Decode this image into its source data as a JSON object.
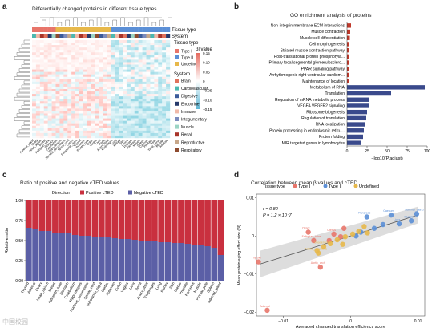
{
  "panels": {
    "a": {
      "label": "a",
      "title": "Differentially changed proteins in different tissue types"
    },
    "b": {
      "label": "b",
      "title": "GO enrichment analysis of proteins"
    },
    "c": {
      "label": "c",
      "title": "Ratio of positive and negative cTED values"
    },
    "d": {
      "label": "d",
      "title": "Correlation between mean β values and cTED"
    }
  },
  "heatmap": {
    "row_labels": [
      "Tissue type",
      "System"
    ],
    "legend_tissue_title": "Tissue type",
    "legend_tissue": [
      {
        "label": "Type I",
        "color": "#e8756a"
      },
      {
        "label": "Type II",
        "color": "#5b8fd6"
      },
      {
        "label": "Undefined",
        "color": "#e7b84a"
      }
    ],
    "legend_beta_title": "βl value",
    "legend_beta_ticks": [
      "0.15",
      "0.10",
      "0.05",
      "0",
      "−0.05",
      "−0.10",
      "−0.15"
    ],
    "legend_system_title": "System",
    "legend_system": [
      {
        "label": "Brain",
        "color": "#e0725c"
      },
      {
        "label": "Cardiovascular",
        "color": "#4bb8b0"
      },
      {
        "label": "Digestive",
        "color": "#3b5b9a"
      },
      {
        "label": "Endocrine",
        "color": "#263a6b"
      },
      {
        "label": "Immune",
        "color": "#f0b9a8"
      },
      {
        "label": "Integumentary",
        "color": "#7b8bbd"
      },
      {
        "label": "Muscle",
        "color": "#9bd4c4"
      },
      {
        "label": "Renal",
        "color": "#a8342a"
      },
      {
        "label": "Reproductive",
        "color": "#c7a789"
      },
      {
        "label": "Respiratory",
        "color": "#8e4b2f"
      }
    ],
    "columns": [
      "Adrenal_gland",
      "Ovary",
      "Heart_atrium",
      "Breast",
      "Fallopian_tube",
      "Stomach",
      "Cerebellum",
      "Hippocampus",
      "Nucleus_accumbens",
      "Spinal_cord",
      "Cortex",
      "Substantia_nigra",
      "Thyroid",
      "Putamen",
      "Frontal_pole",
      "Colon",
      "Vagina",
      "Liver",
      "Aorta",
      "Artery_tibial",
      "Esophagus",
      "Lung",
      "Kidney",
      "Skin",
      "Uterus",
      "Prostate",
      "Pancreas",
      "Muscle",
      "Spleen",
      "Caecum",
      "Pituitary",
      "Testis",
      "Tibial_nerve",
      "Bladder",
      "Adipose"
    ]
  },
  "chart_data": [
    {
      "panel": "b",
      "type": "bar",
      "orientation": "horizontal",
      "xlabel": "−log10(P.adjust)",
      "xlim": [
        0,
        100
      ],
      "xticks": [
        0,
        25,
        50,
        75,
        100
      ],
      "categories": [
        "Non-integrin membrane-ECM interactions",
        "Muscle contraction",
        "Muscle cell differentiation",
        "Cell morphogenesis",
        "Striated muscle contraction pathway",
        "Post-translational protein phosphoryla...",
        "Primary focal segmental glomerulosclero...",
        "PPAR signaling pathway",
        "Arrhythmogenic right ventricular cardiom...",
        "Maintenance of location",
        "Metabolism of RNA",
        "Translation",
        "Regulation of mRNA metabolic process",
        "VEGFA VEGFR2 signaling",
        "Ribosome biogenesis",
        "Regulation of translation",
        "RNA localization",
        "Protein processing in endoplasmic reticu...",
        "Protein folding",
        "MIR targeted genes in lymphocytes"
      ],
      "values": [
        5,
        4,
        3.5,
        3,
        3,
        3,
        2.5,
        2.5,
        2.5,
        2,
        97,
        55,
        27,
        27,
        25,
        24,
        23,
        21,
        20,
        18
      ],
      "colors": [
        "#c0392b",
        "#c0392b",
        "#c0392b",
        "#c0392b",
        "#c0392b",
        "#c0392b",
        "#c0392b",
        "#c0392b",
        "#c0392b",
        "#c0392b",
        "#3a4a8c",
        "#3a4a8c",
        "#3a4a8c",
        "#3a4a8c",
        "#3a4a8c",
        "#3a4a8c",
        "#3a4a8c",
        "#3a4a8c",
        "#3a4a8c",
        "#3a4a8c"
      ]
    },
    {
      "panel": "c",
      "type": "bar",
      "stacked": true,
      "ylabel": "Relative ratio",
      "ylim": [
        0,
        1
      ],
      "yticks": [
        "0.00",
        "0.25",
        "0.50",
        "0.75",
        "1.00"
      ],
      "legend_title": "Direction",
      "categories": [
        "Thyroid",
        "Adrenal",
        "Ovary",
        "Heart_atrium",
        "Breast",
        "Fallopian_tube",
        "Stomach",
        "Cerebellum",
        "Hippocampus",
        "Nucleus_accumbens",
        "Spinal_cord",
        "Substantia_nigra",
        "Cortex",
        "Putamen",
        "Colon",
        "Vagina",
        "Liver",
        "Aorta",
        "Artery_tibial",
        "Esophagus",
        "Lung",
        "Kidney",
        "Skin",
        "Uterus",
        "Prostate",
        "Pancreas",
        "Muscle",
        "Frontal_pole",
        "Spleen",
        "Adrenal_gland"
      ],
      "series": [
        {
          "name": "Positive cTED",
          "color": "#c9303f",
          "values": [
            0.34,
            0.36,
            0.38,
            0.38,
            0.4,
            0.4,
            0.41,
            0.43,
            0.44,
            0.44,
            0.45,
            0.46,
            0.46,
            0.47,
            0.48,
            0.48,
            0.49,
            0.5,
            0.5,
            0.51,
            0.52,
            0.52,
            0.53,
            0.53,
            0.54,
            0.55,
            0.56,
            0.57,
            0.59,
            0.68
          ]
        },
        {
          "name": "Negative cTED",
          "color": "#5b5fa6",
          "values": [
            0.66,
            0.64,
            0.62,
            0.62,
            0.6,
            0.6,
            0.59,
            0.57,
            0.56,
            0.56,
            0.55,
            0.54,
            0.54,
            0.53,
            0.52,
            0.52,
            0.51,
            0.5,
            0.5,
            0.49,
            0.48,
            0.48,
            0.47,
            0.47,
            0.46,
            0.45,
            0.44,
            0.43,
            0.41,
            0.32
          ]
        }
      ]
    },
    {
      "panel": "d",
      "type": "scatter",
      "xlabel": "Averaged changed translation efficiency score",
      "ylabel": "Mean protein aging effect size (βl)",
      "xlim": [
        -0.014,
        0.011
      ],
      "ylim": [
        -0.021,
        0.011
      ],
      "xticks": [
        "−0.01",
        "0",
        "0.01"
      ],
      "yticks": [
        "0.01",
        "0",
        "−0.01",
        "−0.02"
      ],
      "legend_title": "Tissue type",
      "annotation_r": "r = 0.80",
      "annotation_p": "P = 1.2 × 10⁻7",
      "series": [
        {
          "name": "Type I",
          "color": "#e8756a",
          "points": [
            {
              "x": -0.0124,
              "y": -0.0195,
              "label": "Adrenal"
            },
            {
              "x": -0.0137,
              "y": -0.0068,
              "label": "Thyroid"
            },
            {
              "x": -0.0045,
              "y": -0.0082,
              "label": "Aortic_arch"
            },
            {
              "x": -0.0055,
              "y": -0.0012,
              "label": "Fallopian_tube"
            },
            {
              "x": -0.0063,
              "y": 0.001,
              "label": "Ovary"
            },
            {
              "x": -0.0025,
              "y": 0.0005,
              "label": "Uterus"
            },
            {
              "x": -0.0032,
              "y": -0.0012,
              "label": ""
            },
            {
              "x": -0.0015,
              "y": -0.0002,
              "label": ""
            },
            {
              "x": -0.001,
              "y": 0.002,
              "label": ""
            }
          ]
        },
        {
          "name": "Type II",
          "color": "#5b8fd6",
          "points": [
            {
              "x": 0.0098,
              "y": 0.0058,
              "label": "Adrenal_gland"
            },
            {
              "x": 0.009,
              "y": 0.004,
              "label": "Muscle"
            },
            {
              "x": 0.006,
              "y": 0.0055,
              "label": "Caecum"
            },
            {
              "x": 0.0072,
              "y": 0.0032,
              "label": "Liver"
            },
            {
              "x": 0.0024,
              "y": 0.005,
              "label": "Pancreas"
            },
            {
              "x": 0.0048,
              "y": 0.003,
              "label": ""
            },
            {
              "x": 0.0035,
              "y": 0.002,
              "label": ""
            },
            {
              "x": 0.0015,
              "y": 0.001,
              "label": ""
            },
            {
              "x": 0.0008,
              "y": 0.0,
              "label": ""
            }
          ]
        },
        {
          "name": "Undefined",
          "color": "#e7b84a",
          "points": [
            {
              "x": -0.0048,
              "y": -0.0045,
              "label": "Arteria_coronaria"
            },
            {
              "x": -0.004,
              "y": -0.0028,
              "label": "Duodenum"
            },
            {
              "x": -0.003,
              "y": -0.002,
              "label": ""
            },
            {
              "x": -0.002,
              "y": -0.001,
              "label": ""
            },
            {
              "x": -0.0008,
              "y": -0.0002,
              "label": ""
            },
            {
              "x": 0.0003,
              "y": 0.0005,
              "label": ""
            },
            {
              "x": 0.0012,
              "y": 0.0012,
              "label": ""
            },
            {
              "x": 0.002,
              "y": 0.0025,
              "label": ""
            },
            {
              "x": 0.0025,
              "y": 0.0008,
              "label": ""
            },
            {
              "x": -0.0012,
              "y": -0.0022,
              "label": ""
            },
            {
              "x": -0.005,
              "y": -0.0038,
              "label": ""
            }
          ]
        }
      ]
    }
  ],
  "watermark": "中国校园"
}
